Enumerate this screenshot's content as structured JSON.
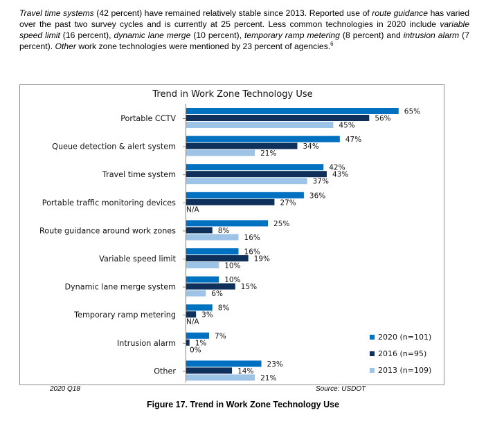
{
  "intro": {
    "s1_em": "Travel time systems",
    "s1": " (42 percent) have remained relatively stable since 2013. Reported use of ",
    "s2_em": "route guidance",
    "s2": " has varied over the past two survey cycles and is currently at 25 percent. Less common technologies in 2020 include ",
    "s3_em": "variable speed limit",
    "s3": " (16 percent), ",
    "s4_em": "dynamic lane merge",
    "s4": " (10 percent), ",
    "s5_em": "temporary ramp metering",
    "s5": " (8 percent) and ",
    "s6_em": "intrusion alarm",
    "s6": " (7 percent). ",
    "s7_em": "Other",
    "s7": " work zone technologies were mentioned by 23 percent of agencies.",
    "footnote": "6"
  },
  "chart_data": {
    "type": "bar",
    "orientation": "horizontal",
    "title": "Trend in Work Zone Technology Use",
    "categories": [
      "Portable CCTV",
      "Queue detection & alert system",
      "Travel time system",
      "Portable traffic monitoring devices",
      "Route guidance around work zones",
      "Variable speed limit",
      "Dynamic lane merge system",
      "Temporary ramp metering",
      "Intrusion alarm",
      "Other"
    ],
    "series": [
      {
        "name": "2020 (n=101)",
        "color": "#0070C0",
        "values": [
          65,
          47,
          42,
          36,
          25,
          16,
          10,
          8,
          7,
          23
        ]
      },
      {
        "name": "2016 (n=95)",
        "color": "#10305C",
        "values": [
          56,
          34,
          43,
          27,
          8,
          19,
          15,
          3,
          1,
          14
        ]
      },
      {
        "name": "2013 (n=109)",
        "color": "#9DC3E6",
        "values": [
          45,
          21,
          37,
          null,
          16,
          10,
          6,
          null,
          0,
          21
        ]
      }
    ],
    "na_label": "N/A",
    "value_suffix": "%",
    "xlim": [
      0,
      70
    ],
    "grid": false,
    "legend_position": "bottom-right"
  },
  "footer": {
    "left": "2020 Q18",
    "right": "Source: USDOT"
  },
  "caption": "Figure 17. Trend in Work Zone Technology Use"
}
